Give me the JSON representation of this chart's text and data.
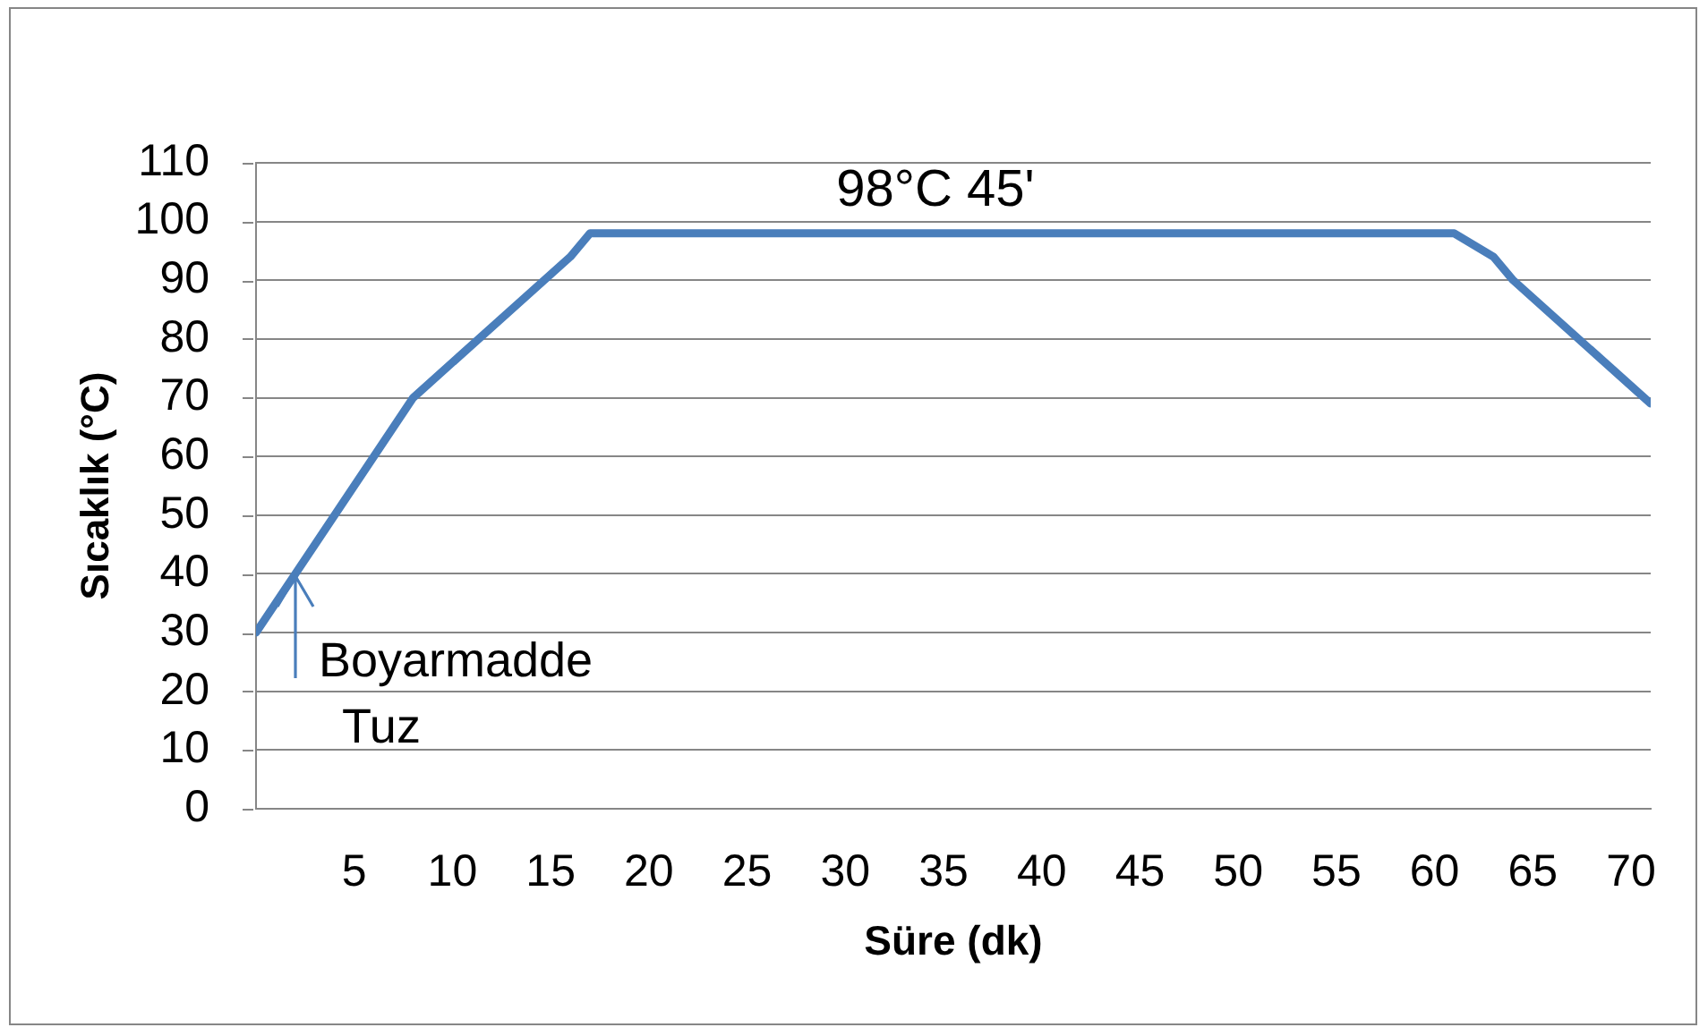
{
  "chart_data": {
    "type": "line",
    "xlabel": "Süre (dk)",
    "ylabel": "Sıcaklık (°C)",
    "x": [
      0,
      1,
      2,
      8,
      16,
      17,
      61,
      63,
      64,
      71
    ],
    "series": [
      {
        "color": "#4a7ebb",
        "values": [
          30,
          35,
          40,
          70,
          94,
          98,
          98,
          94,
          90,
          69
        ]
      }
    ],
    "xlim": [
      0,
      71
    ],
    "xticks": [
      5,
      10,
      15,
      20,
      25,
      30,
      35,
      40,
      45,
      50,
      55,
      60,
      65,
      70
    ],
    "ylim": [
      0,
      110
    ],
    "yticks": [
      0,
      10,
      20,
      30,
      40,
      50,
      60,
      70,
      80,
      90,
      100,
      110
    ],
    "grid": "y",
    "marker": "none",
    "annotations": [
      "98°C 45'",
      {
        "text": "Boyarmadde",
        "x": 2,
        "y": 40
      },
      {
        "text": "Tuz",
        "x": 2,
        "y": 40
      }
    ]
  }
}
